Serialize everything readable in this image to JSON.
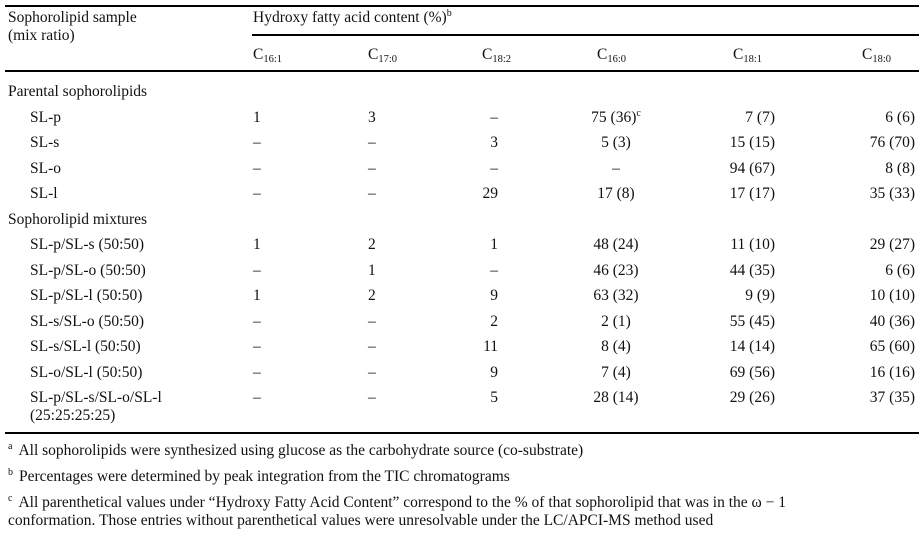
{
  "header": {
    "sample_col_line1": "Sophorolipid sample",
    "sample_col_line2": "(mix ratio)",
    "group_header": "Hydroxy fatty acid content (%)",
    "group_header_note": "b",
    "columns": [
      {
        "base": "C",
        "sub": "16:1"
      },
      {
        "base": "C",
        "sub": "17:0"
      },
      {
        "base": "C",
        "sub": "18:2"
      },
      {
        "base": "C",
        "sub": "16:0"
      },
      {
        "base": "C",
        "sub": "18:1"
      },
      {
        "base": "C",
        "sub": "18:0"
      }
    ]
  },
  "sections": [
    {
      "title": "Parental sophorolipids",
      "rows": [
        {
          "sample": "SL-p",
          "values": [
            "1",
            "3",
            "–",
            "75 (36)",
            "7 (7)",
            "6 (6)"
          ],
          "note": "c"
        },
        {
          "sample": "SL-s",
          "values": [
            "–",
            "–",
            "3",
            "5 (3)",
            "15 (15)",
            "76 (70)"
          ]
        },
        {
          "sample": "SL-o",
          "values": [
            "–",
            "–",
            "–",
            "–",
            "94 (67)",
            "8 (8)"
          ]
        },
        {
          "sample": "SL-l",
          "values": [
            "–",
            "–",
            "29",
            "17 (8)",
            "17 (17)",
            "35 (33)"
          ]
        }
      ]
    },
    {
      "title": "Sophorolipid mixtures",
      "rows": [
        {
          "sample": "SL-p/SL-s (50:50)",
          "values": [
            "1",
            "2",
            "1",
            "48 (24)",
            "11 (10)",
            "29 (27)"
          ]
        },
        {
          "sample": "SL-p/SL-o (50:50)",
          "values": [
            "–",
            "1",
            "–",
            "46 (23)",
            "44 (35)",
            "6 (6)"
          ]
        },
        {
          "sample": "SL-p/SL-l (50:50)",
          "values": [
            "1",
            "2",
            "9",
            "63 (32)",
            "9 (9)",
            "10 (10)"
          ]
        },
        {
          "sample": "SL-s/SL-o (50:50)",
          "values": [
            "–",
            "–",
            "2",
            "2 (1)",
            "55 (45)",
            "40 (36)"
          ]
        },
        {
          "sample": "SL-s/SL-l (50:50)",
          "values": [
            "–",
            "–",
            "11",
            "8 (4)",
            "14 (14)",
            "65 (60)"
          ]
        },
        {
          "sample": "SL-o/SL-l (50:50)",
          "values": [
            "–",
            "–",
            "9",
            "7 (4)",
            "69 (56)",
            "16 (16)"
          ]
        },
        {
          "sample": "SL-p/SL-s/SL-o/SL-l",
          "sample_line2": "(25:25:25:25)",
          "values": [
            "–",
            "–",
            "5",
            "28 (14)",
            "29 (26)",
            "37 (35)"
          ]
        }
      ]
    }
  ],
  "footnotes": [
    {
      "mark": "a",
      "text": "All sophorolipids were synthesized using glucose as the carbohydrate source (co-substrate)"
    },
    {
      "mark": "b",
      "text": "Percentages were determined by peak integration from the TIC chromatograms"
    },
    {
      "mark": "c",
      "text": "All parenthetical values under “Hydroxy Fatty Acid Content” correspond to the % of that sophorolipid that was in the ω − 1",
      "text_line2": "conformation. Those entries without parenthetical values were unresolvable under the LC/APCI-MS method used"
    }
  ]
}
